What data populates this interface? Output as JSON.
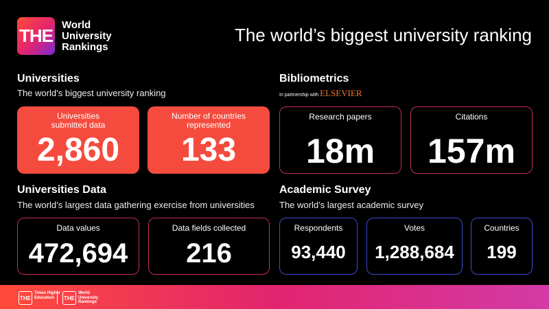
{
  "logo": {
    "mark": "THE",
    "text": "World University Rankings"
  },
  "headline": "The world’s biggest university ranking",
  "universities": {
    "title": "Universities",
    "subtitle": "The world’s biggest university ranking",
    "cards": [
      {
        "label": "Universities submitted data",
        "value": "2,860"
      },
      {
        "label": "Number of countries represented",
        "value": "133"
      }
    ]
  },
  "bibliometrics": {
    "title": "Bibliometrics",
    "partner_prefix": "In partnership with",
    "partner": "ELSEVIER",
    "cards": [
      {
        "label": "Research papers",
        "value": "18m"
      },
      {
        "label": "Citations",
        "value": "157m"
      }
    ]
  },
  "universities_data": {
    "title": "Universities Data",
    "subtitle": "The world’s largest data gathering exercise from universities",
    "cards": [
      {
        "label": "Data values",
        "value": "472,694"
      },
      {
        "label": "Data fields collected",
        "value": "216"
      }
    ]
  },
  "academic_survey": {
    "title": "Academic Survey",
    "subtitle": "The world’s largest academic survey",
    "cards": [
      {
        "label": "Respondents",
        "value": "93,440"
      },
      {
        "label": "Votes",
        "value": "1,288,684"
      },
      {
        "label": "Countries",
        "value": "199"
      }
    ]
  },
  "footer": {
    "left_mark": "THE",
    "left_text": "Times Higher Education",
    "right_mark": "THE",
    "right_text": "World University Rankings"
  }
}
